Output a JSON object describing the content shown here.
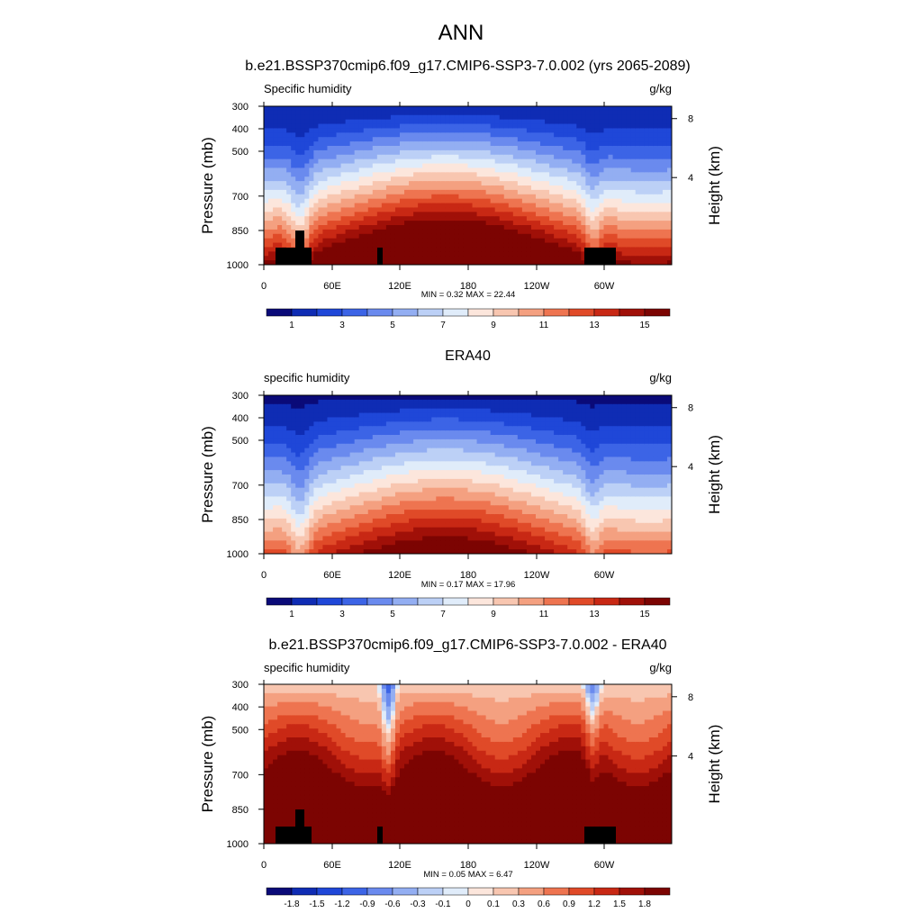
{
  "figure": {
    "title": "ANN"
  },
  "chart_data": [
    {
      "type": "contour",
      "title": "b.e21.BSSP370cmip6.f09_g17.CMIP6-SSP3-7.0.002 (yrs 2065-2089)",
      "left_label": "Specific humidity",
      "units": "g/kg",
      "ylabel": "Pressure (mb)",
      "y2label": "Height (km)",
      "yticks": [
        "300",
        "400",
        "500",
        "700",
        "850",
        "1000"
      ],
      "y2ticks": [
        "8",
        "4"
      ],
      "xticks": [
        "0",
        "60E",
        "120E",
        "180",
        "120W",
        "60W"
      ],
      "stats": "MIN =   0.32  MAX =  22.44",
      "min": 0.32,
      "max": 22.44,
      "colorbar_labels": [
        "1",
        "3",
        "5",
        "7",
        "9",
        "11",
        "13",
        "15"
      ],
      "colorbar_colors": [
        "#0a0a78",
        "#0f2cb4",
        "#1f47d8",
        "#3c64e6",
        "#6a8aee",
        "#93aef2",
        "#bcd0f6",
        "#e0ecfa",
        "#fce6dc",
        "#f8c6b0",
        "#f4a080",
        "#ee7450",
        "#e04a28",
        "#c82814",
        "#a01008",
        "#7c0402"
      ]
    },
    {
      "type": "contour",
      "title": "ERA40",
      "left_label": "specific humidity",
      "units": "g/kg",
      "ylabel": "Pressure (mb)",
      "y2label": "Height (km)",
      "yticks": [
        "300",
        "400",
        "500",
        "700",
        "850",
        "1000"
      ],
      "y2ticks": [
        "8",
        "4"
      ],
      "xticks": [
        "0",
        "60E",
        "120E",
        "180",
        "120W",
        "60W"
      ],
      "stats": "MIN =   0.17  MAX =  17.96",
      "min": 0.17,
      "max": 17.96,
      "colorbar_labels": [
        "1",
        "3",
        "5",
        "7",
        "9",
        "11",
        "13",
        "15"
      ],
      "colorbar_colors": [
        "#0a0a78",
        "#0f2cb4",
        "#1f47d8",
        "#3c64e6",
        "#6a8aee",
        "#93aef2",
        "#bcd0f6",
        "#e0ecfa",
        "#fce6dc",
        "#f8c6b0",
        "#f4a080",
        "#ee7450",
        "#e04a28",
        "#c82814",
        "#a01008",
        "#7c0402"
      ]
    },
    {
      "type": "contour",
      "title": "b.e21.BSSP370cmip6.f09_g17.CMIP6-SSP3-7.0.002 - ERA40",
      "left_label": "specific humidity",
      "units": "g/kg",
      "ylabel": "Pressure (mb)",
      "y2label": "Height (km)",
      "yticks": [
        "300",
        "400",
        "500",
        "700",
        "850",
        "1000"
      ],
      "y2ticks": [
        "8",
        "4"
      ],
      "xticks": [
        "0",
        "60E",
        "120E",
        "180",
        "120W",
        "60W"
      ],
      "stats": "MIN =   0.05  MAX =   6.47",
      "min": 0.05,
      "max": 6.47,
      "colorbar_labels": [
        "-1.8",
        "-1.5",
        "-1.2",
        "-0.9",
        "-0.6",
        "-0.3",
        "-0.1",
        "0",
        "0.1",
        "0.3",
        "0.6",
        "0.9",
        "1.2",
        "1.5",
        "1.8"
      ],
      "colorbar_colors": [
        "#0a0a78",
        "#0f2cb4",
        "#1f47d8",
        "#3c64e6",
        "#6a8aee",
        "#93aef2",
        "#bcd0f6",
        "#e0ecfa",
        "#fce6dc",
        "#f8c6b0",
        "#f4a080",
        "#ee7450",
        "#e04a28",
        "#c82814",
        "#a01008",
        "#7c0402"
      ]
    }
  ]
}
